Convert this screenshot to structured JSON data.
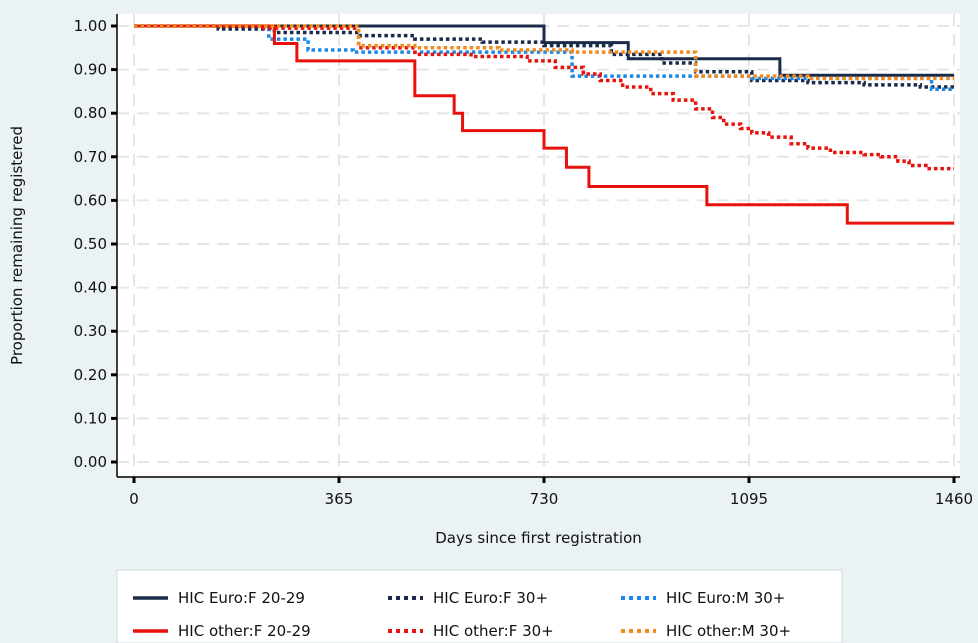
{
  "chart_data": {
    "type": "line",
    "step": true,
    "xlabel": "Days since first registration",
    "ylabel": "Proportion remaining registered",
    "xlim": [
      0,
      1460
    ],
    "ylim": [
      0,
      1
    ],
    "xticks": [
      0,
      365,
      730,
      1095,
      1460
    ],
    "xtick_labels": [
      "0",
      "365",
      "730",
      "1095",
      "1460"
    ],
    "yticks": [
      0,
      0.1,
      0.2,
      0.3,
      0.4,
      0.5,
      0.6,
      0.7,
      0.8,
      0.9,
      1.0
    ],
    "ytick_labels": [
      "0.00",
      "0.10",
      "0.20",
      "0.30",
      "0.40",
      "0.50",
      "0.60",
      "0.70",
      "0.80",
      "0.90",
      "1.00"
    ],
    "grid": true,
    "legend_position": "bottom",
    "colors": {
      "background": "#eaf2f3",
      "plot_background": "#ffffff",
      "grid": "#e6e6e6",
      "navy": "#1a2a4a",
      "red": "#e8120c",
      "blue": "#1e88e5",
      "orange": "#f08c1e"
    },
    "series": [
      {
        "name": "HIC Euro:F 20-29",
        "color": "#1a2a4a",
        "dash": "solid",
        "x": [
          0,
          730,
          880,
          1150,
          1460
        ],
        "y": [
          1.0,
          0.962,
          0.925,
          0.887,
          0.887
        ]
      },
      {
        "name": "HIC Euro:F 30+",
        "color": "#1a2a4a",
        "dash": "dotted",
        "x": [
          0,
          150,
          250,
          400,
          500,
          620,
          730,
          850,
          940,
          1000,
          1100,
          1200,
          1300,
          1400,
          1460
        ],
        "y": [
          1.0,
          0.993,
          0.985,
          0.978,
          0.97,
          0.963,
          0.955,
          0.935,
          0.915,
          0.895,
          0.875,
          0.87,
          0.865,
          0.86,
          0.86
        ]
      },
      {
        "name": "HIC Euro:M 30+",
        "color": "#1e88e5",
        "dash": "dotted",
        "x": [
          0,
          240,
          310,
          390,
          780,
          1100,
          1420,
          1460
        ],
        "y": [
          1.0,
          0.97,
          0.945,
          0.94,
          0.885,
          0.88,
          0.855,
          0.855
        ]
      },
      {
        "name": "HIC other:F 20-29",
        "color": "#e8120c",
        "dash": "solid",
        "x": [
          0,
          250,
          290,
          500,
          570,
          585,
          730,
          770,
          810,
          1020,
          1270,
          1460
        ],
        "y": [
          1.0,
          0.96,
          0.92,
          0.84,
          0.8,
          0.76,
          0.72,
          0.676,
          0.632,
          0.59,
          0.548,
          0.548
        ]
      },
      {
        "name": "HIC other:F 30+",
        "color": "#e8120c",
        "dash": "dotted",
        "x": [
          0,
          230,
          400,
          500,
          600,
          700,
          750,
          800,
          830,
          870,
          920,
          960,
          1000,
          1030,
          1050,
          1080,
          1100,
          1130,
          1170,
          1200,
          1240,
          1270,
          1300,
          1330,
          1360,
          1380,
          1410,
          1460
        ],
        "y": [
          1.0,
          0.995,
          0.95,
          0.935,
          0.93,
          0.92,
          0.905,
          0.89,
          0.875,
          0.86,
          0.845,
          0.83,
          0.81,
          0.79,
          0.775,
          0.765,
          0.755,
          0.745,
          0.73,
          0.72,
          0.71,
          0.71,
          0.705,
          0.7,
          0.69,
          0.68,
          0.673,
          0.673
        ]
      },
      {
        "name": "HIC other:M 30+",
        "color": "#f08c1e",
        "dash": "dotted",
        "x": [
          0,
          400,
          500,
          650,
          780,
          1000,
          1200,
          1460
        ],
        "y": [
          1.0,
          0.955,
          0.95,
          0.945,
          0.94,
          0.885,
          0.88,
          0.88
        ]
      }
    ]
  }
}
